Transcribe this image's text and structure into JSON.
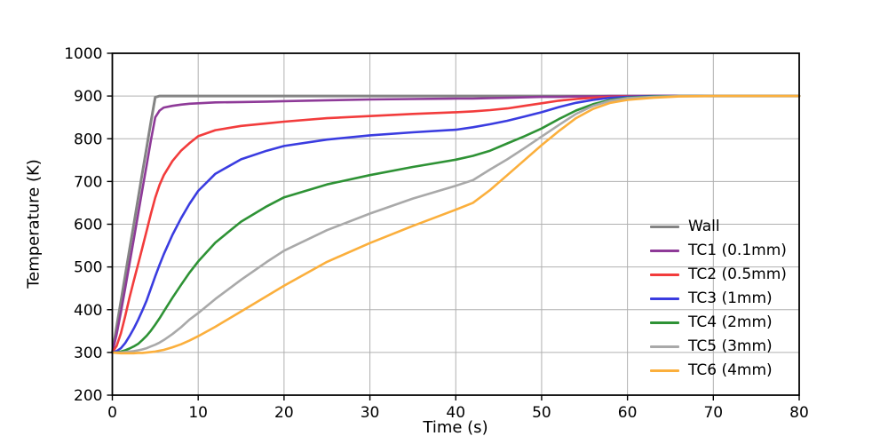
{
  "figure": {
    "background": "#ffffff"
  },
  "colors": {
    "grid": "#b0b0b0",
    "spine": "#000000",
    "text": "#000000"
  },
  "chart_data": {
    "type": "line",
    "title": "",
    "xlabel": "Time (s)",
    "ylabel": "Temperature (K)",
    "xlim": [
      0,
      80
    ],
    "ylim": [
      200,
      1000
    ],
    "x_ticks": [
      0,
      10,
      20,
      30,
      40,
      50,
      60,
      70,
      80
    ],
    "y_ticks": [
      200,
      300,
      400,
      500,
      600,
      700,
      800,
      900,
      1000
    ],
    "grid": true,
    "legend_position": "center right",
    "legend_frame": false,
    "x": [
      0,
      0.5,
      1,
      1.5,
      2,
      2.5,
      3,
      3.5,
      4,
      4.5,
      5,
      5.5,
      6,
      7,
      8,
      9,
      10,
      12,
      15,
      18,
      20,
      25,
      30,
      35,
      40,
      42,
      44,
      46,
      48,
      50,
      52,
      54,
      56,
      58,
      60,
      63,
      66,
      70,
      75,
      80
    ],
    "series": [
      {
        "name": "Wall",
        "color": "#848484",
        "line_width": 3,
        "values": [
          300,
          360,
          420,
          480,
          540,
          600,
          660,
          720,
          780,
          840,
          897,
          900,
          900,
          900,
          900,
          900,
          900,
          900,
          900,
          900,
          900,
          900,
          900,
          900,
          900,
          900,
          900,
          900,
          900,
          900,
          900,
          900,
          900,
          900,
          900,
          900,
          900,
          900,
          900,
          900
        ]
      },
      {
        "name": "TC1 (0.1mm)",
        "color": "#8e3a98",
        "line_width": 2.6,
        "values": [
          300,
          342,
          395,
          450,
          507,
          565,
          623,
          681,
          739,
          797,
          850,
          866,
          873,
          877,
          880,
          882,
          883,
          885,
          886,
          887,
          888,
          890,
          892,
          893,
          894,
          894,
          895,
          896,
          897,
          898,
          898,
          899,
          899,
          900,
          900,
          900,
          900,
          900,
          900,
          900
        ]
      },
      {
        "name": "TC2 (0.5mm)",
        "color": "#f23c3c",
        "line_width": 2.6,
        "values": [
          300,
          315,
          345,
          385,
          428,
          468,
          506,
          545,
          585,
          625,
          662,
          692,
          715,
          748,
          772,
          790,
          806,
          820,
          830,
          836,
          840,
          848,
          853,
          858,
          862,
          864,
          867,
          871,
          877,
          883,
          889,
          893,
          896,
          898,
          899,
          900,
          900,
          900,
          900,
          900
        ]
      },
      {
        "name": "TC3 (1mm)",
        "color": "#3a3ce0",
        "line_width": 2.6,
        "values": [
          300,
          303,
          310,
          322,
          338,
          356,
          376,
          398,
          422,
          450,
          478,
          505,
          530,
          575,
          614,
          648,
          678,
          718,
          752,
          772,
          783,
          798,
          808,
          815,
          821,
          827,
          834,
          842,
          852,
          862,
          874,
          884,
          891,
          896,
          898,
          900,
          900,
          900,
          900,
          900
        ]
      },
      {
        "name": "TC4 (2mm)",
        "color": "#2e9235",
        "line_width": 2.6,
        "values": [
          300,
          300,
          302,
          305,
          309,
          314,
          320,
          329,
          339,
          351,
          365,
          380,
          396,
          428,
          458,
          487,
          513,
          557,
          606,
          642,
          663,
          693,
          715,
          734,
          751,
          760,
          772,
          789,
          806,
          824,
          846,
          866,
          881,
          891,
          896,
          899,
          900,
          900,
          900,
          900
        ]
      },
      {
        "name": "TC5 (3mm)",
        "color": "#a9a9a9",
        "line_width": 2.6,
        "values": [
          300,
          300,
          300,
          301,
          302,
          303,
          305,
          307,
          310,
          314,
          318,
          323,
          329,
          343,
          359,
          377,
          392,
          425,
          470,
          512,
          538,
          586,
          625,
          660,
          690,
          703,
          728,
          752,
          778,
          805,
          832,
          858,
          877,
          889,
          895,
          898,
          900,
          900,
          900,
          900
        ]
      },
      {
        "name": "TC6 (4mm)",
        "color": "#fbaf3c",
        "line_width": 2.6,
        "values": [
          300,
          299,
          298,
          298,
          298,
          298,
          299,
          299,
          300,
          301,
          302,
          304,
          306,
          312,
          319,
          328,
          338,
          360,
          396,
          432,
          456,
          512,
          556,
          596,
          634,
          650,
          680,
          715,
          750,
          785,
          818,
          848,
          870,
          884,
          891,
          896,
          899,
          900,
          900,
          900
        ]
      }
    ]
  }
}
